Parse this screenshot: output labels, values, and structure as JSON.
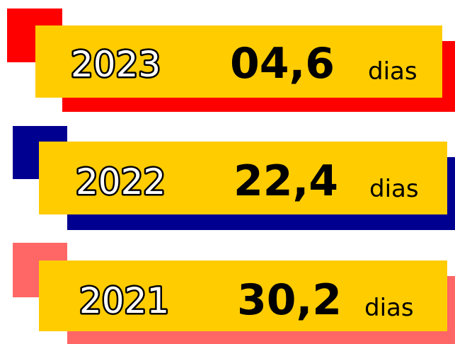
{
  "items": [
    {
      "year": "2023",
      "value": "04,6",
      "unit": "dias"
    },
    {
      "year": "2022",
      "value": "22,4",
      "unit": "dias"
    },
    {
      "year": "2021",
      "value": "30,2",
      "unit": "dias"
    }
  ]
}
